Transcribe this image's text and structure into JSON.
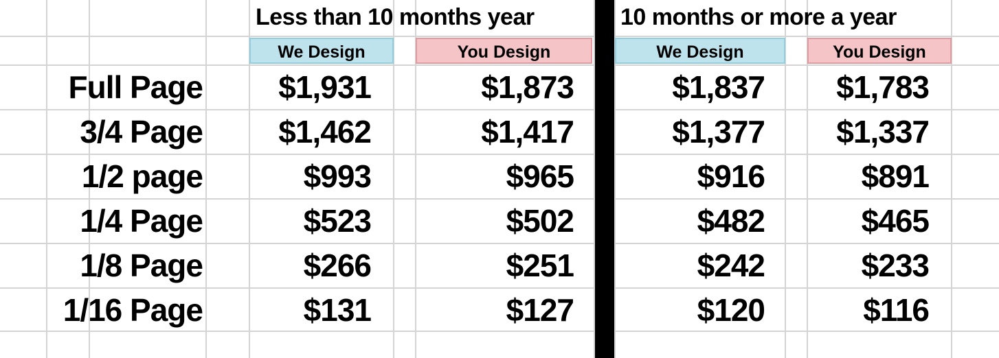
{
  "groups": [
    {
      "title": "Less than 10 months year",
      "columns": [
        "We Design",
        "You Design"
      ]
    },
    {
      "title": "10 months or more a year",
      "columns": [
        "We Design",
        "You Design"
      ]
    }
  ],
  "rows": [
    {
      "label": "Full Page",
      "values": [
        "$1,931",
        "$1,873",
        "$1,837",
        "$1,783"
      ]
    },
    {
      "label": "3/4 Page",
      "values": [
        "$1,462",
        "$1,417",
        "$1,377",
        "$1,337"
      ]
    },
    {
      "label": "1/2 page",
      "values": [
        "$993",
        "$965",
        "$916",
        "$891"
      ]
    },
    {
      "label": "1/4 Page",
      "values": [
        "$523",
        "$502",
        "$482",
        "$465"
      ]
    },
    {
      "label": "1/8 Page",
      "values": [
        "$266",
        "$251",
        "$242",
        "$233"
      ]
    },
    {
      "label": "1/16 Page",
      "values": [
        "$131",
        "$127",
        "$120",
        "$116"
      ]
    }
  ]
}
